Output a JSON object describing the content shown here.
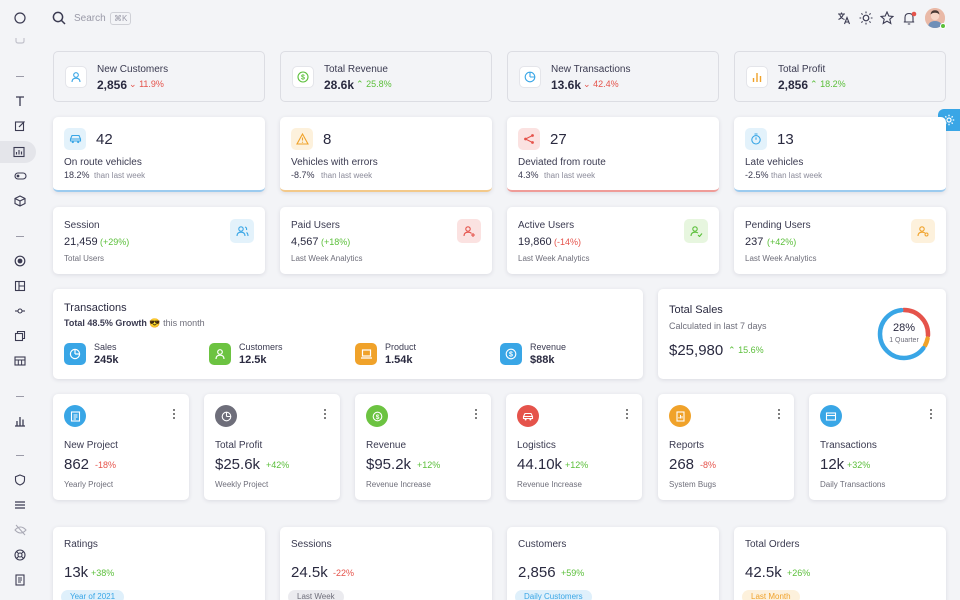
{
  "search": {
    "placeholder": "Search",
    "shortcut": "⌘K"
  },
  "top_stats": [
    {
      "label": "New Customers",
      "value": "2,856",
      "change": "11.9%",
      "dir": "down",
      "icon": "user-icon",
      "color": "#39a6e6"
    },
    {
      "label": "Total Revenue",
      "value": "28.6k",
      "change": "25.8%",
      "dir": "up",
      "icon": "dollar-icon",
      "color": "#5bbf3a"
    },
    {
      "label": "New Transactions",
      "value": "13.6k",
      "change": "42.4%",
      "dir": "down",
      "icon": "pie-icon",
      "color": "#39a6e6"
    },
    {
      "label": "Total Profit",
      "value": "2,856",
      "change": "18.2%",
      "dir": "up",
      "icon": "bar-chart-icon",
      "color": "#f0a22a"
    }
  ],
  "vehicle_stats": [
    {
      "value": "42",
      "label": "On route vehicles",
      "pct": "18.2%",
      "note": "than last week",
      "icon": "car-icon",
      "color": "#39a6e6",
      "bg": "#e3f2fb",
      "line": "#9ccbef"
    },
    {
      "value": "8",
      "label": "Vehicles with errors",
      "pct": "-8.7%",
      "note": "than last week",
      "icon": "warning-icon",
      "color": "#f0a22a",
      "bg": "#fdf1dc",
      "line": "#f3c98a"
    },
    {
      "value": "27",
      "label": "Deviated from route",
      "pct": "4.3%",
      "note": "than last week",
      "icon": "share-icon",
      "color": "#e5534b",
      "bg": "#fbe2e1",
      "line": "#ef9c98"
    },
    {
      "value": "13",
      "label": "Late vehicles",
      "pct": "-2.5%",
      "note": "than last week",
      "icon": "timer-icon",
      "color": "#39a6e6",
      "bg": "#e3f2fb",
      "line": "#9ccbef"
    }
  ],
  "user_stats": [
    {
      "label": "Session",
      "value": "21,459",
      "change": "(+29%)",
      "dir": "up",
      "sub": "Total Users",
      "icon": "users-icon",
      "color": "#39a6e6",
      "bg": "#e3f2fb"
    },
    {
      "label": "Paid Users",
      "value": "4,567",
      "change": "(+18%)",
      "dir": "up",
      "sub": "Last Week Analytics",
      "icon": "user-add-icon",
      "color": "#e5534b",
      "bg": "#fbe2e1"
    },
    {
      "label": "Active Users",
      "value": "19,860",
      "change": "(-14%)",
      "dir": "down",
      "sub": "Last Week Analytics",
      "icon": "user-check-icon",
      "color": "#5bbf3a",
      "bg": "#e7f6df"
    },
    {
      "label": "Pending Users",
      "value": "237",
      "change": "(+42%)",
      "dir": "up",
      "sub": "Last Week Analytics",
      "icon": "user-search-icon",
      "color": "#f0a22a",
      "bg": "#fdf1dc"
    }
  ],
  "transactions": {
    "title": "Transactions",
    "growth_prefix": "Total 48.5% Growth",
    "emoji": "😎",
    "growth_suffix": "this month",
    "items": [
      {
        "label": "Sales",
        "value": "245k",
        "icon": "pie-icon",
        "color": "#39a6e6"
      },
      {
        "label": "Customers",
        "value": "12.5k",
        "icon": "user-icon",
        "color": "#6cc341"
      },
      {
        "label": "Product",
        "value": "1.54k",
        "icon": "laptop-icon",
        "color": "#f0a22a"
      },
      {
        "label": "Revenue",
        "value": "$88k",
        "icon": "dollar-icon",
        "color": "#39a6e6"
      }
    ]
  },
  "total_sales": {
    "title": "Total Sales",
    "subtitle": "Calculated in last 7 days",
    "value": "$25,980",
    "change": "15.6%",
    "donut_pct": "28%",
    "donut_label": "1 Quarter",
    "donut_segments": [
      {
        "fraction": 0.28,
        "color": "#e5534b"
      },
      {
        "fraction": 0.07,
        "color": "#f0a22a"
      },
      {
        "fraction": 0.65,
        "color": "#39a6e6"
      }
    ]
  },
  "mini_cards": [
    {
      "title": "New Project",
      "value": "862",
      "change": "-18%",
      "dir": "down",
      "sub": "Yearly Project",
      "icon": "doc-icon",
      "color": "#39a6e6"
    },
    {
      "title": "Total Profit",
      "value": "$25.6k",
      "change": "+42%",
      "dir": "up",
      "sub": "Weekly Project",
      "icon": "clock-pie-icon",
      "color": "#6e6e7a"
    },
    {
      "title": "Revenue",
      "value": "$95.2k",
      "change": "+12%",
      "dir": "up",
      "sub": "Revenue Increase",
      "icon": "dollar-icon",
      "color": "#6cc341"
    },
    {
      "title": "Logistics",
      "value": "44.10k",
      "change": "+12%",
      "dir": "up",
      "sub": "Revenue Increase",
      "icon": "car-icon",
      "color": "#e5534b"
    },
    {
      "title": "Reports",
      "value": "268",
      "change": "-8%",
      "dir": "down",
      "sub": "System Bugs",
      "icon": "report-icon",
      "color": "#f0a22a"
    },
    {
      "title": "Transactions",
      "value": "12k",
      "change": "+32%",
      "dir": "up",
      "sub": "Daily Transactions",
      "icon": "card-icon",
      "color": "#39a6e6"
    }
  ],
  "bottom_cards": [
    {
      "title": "Ratings",
      "value": "13k",
      "change": "+38%",
      "dir": "up",
      "pill": "Year of 2021",
      "pill_bg": "#dff0fb",
      "pill_fg": "#39a6e6"
    },
    {
      "title": "Sessions",
      "value": "24.5k",
      "change": "-22%",
      "dir": "down",
      "pill": "Last Week",
      "pill_bg": "#ebebef",
      "pill_fg": "#6e6e7a"
    },
    {
      "title": "Customers",
      "value": "2,856",
      "change": "+59%",
      "dir": "up",
      "pill": "Daily Customers",
      "pill_bg": "#dff0fb",
      "pill_fg": "#39a6e6"
    },
    {
      "title": "Total Orders",
      "value": "42.5k",
      "change": "+26%",
      "dir": "up",
      "pill": "Last Month",
      "pill_bg": "#fdf1dc",
      "pill_fg": "#f0a22a"
    }
  ]
}
